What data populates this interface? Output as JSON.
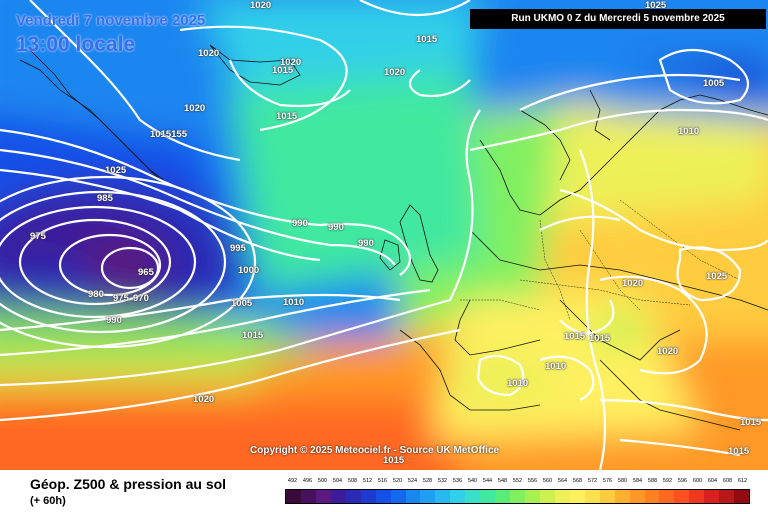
{
  "header": {
    "date": "Vendredi 7 novembre 2025",
    "time": "13:00 locale",
    "run": "Run UKMO 0 Z du Mercredi 5 novembre 2025"
  },
  "copyright": "Copyright © 2025 Meteociel.fr - Source UK MetOffice",
  "footer": {
    "title": "Géop. Z500 & pression au sol",
    "subtitle": "(+ 60h)"
  },
  "isobar_labels": [
    "1020",
    "1025",
    "1020",
    "1020",
    "1015",
    "1020",
    "1015",
    "1010",
    "1005",
    "1020",
    "1015",
    "1015155",
    "1025",
    "985",
    "975",
    "965",
    "980",
    "975",
    "970",
    "990",
    "995",
    "1000",
    "1005",
    "1010",
    "990",
    "990",
    "990",
    "1015",
    "1020",
    "1020",
    "1025",
    "1015",
    "1015",
    "1020",
    "1010",
    "1010",
    "1015",
    "1015",
    "1015"
  ],
  "legend": {
    "labels": [
      "492",
      "496",
      "500",
      "504",
      "508",
      "512",
      "516",
      "520",
      "524",
      "528",
      "532",
      "536",
      "540",
      "544",
      "548",
      "552",
      "556",
      "560",
      "564",
      "568",
      "572",
      "576",
      "580",
      "584",
      "588",
      "592",
      "596",
      "600",
      "604",
      "608",
      "612"
    ],
    "colors": [
      "#3a0a3a",
      "#4a1060",
      "#5a1a80",
      "#3c1c9a",
      "#2a2ab5",
      "#1e3ad0",
      "#1450e8",
      "#1468f0",
      "#1a86f0",
      "#20a0f0",
      "#28b8f0",
      "#30d0e8",
      "#38e0c8",
      "#40e8a0",
      "#58ec78",
      "#80f060",
      "#a8f050",
      "#ccf050",
      "#eef058",
      "#fff060",
      "#ffe050",
      "#ffcc40",
      "#ffb030",
      "#ff9828",
      "#ff8020",
      "#ff6820",
      "#ff5020",
      "#f03820",
      "#d82020",
      "#b81818",
      "#900c10"
    ]
  }
}
